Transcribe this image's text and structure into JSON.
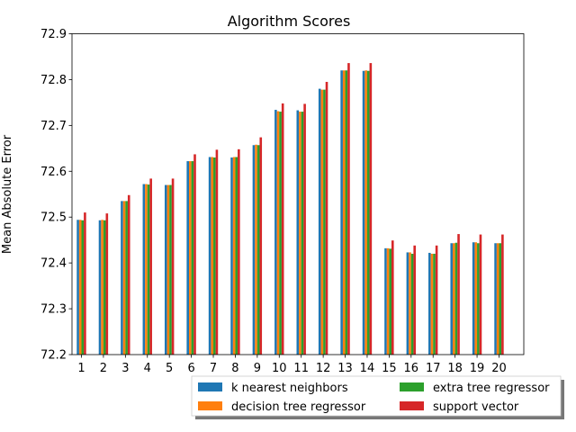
{
  "chart_data": {
    "type": "bar",
    "title": "Algorithm Scores",
    "xlabel": "",
    "ylabel": "Mean Absolute Error",
    "ylim": [
      72.2,
      72.9
    ],
    "yticks": [
      "72.2",
      "72.3",
      "72.4",
      "72.5",
      "72.6",
      "72.7",
      "72.8",
      "72.9"
    ],
    "categories": [
      "1",
      "2",
      "3",
      "4",
      "5",
      "6",
      "7",
      "8",
      "9",
      "10",
      "11",
      "12",
      "13",
      "14",
      "15",
      "16",
      "17",
      "18",
      "19",
      "20"
    ],
    "grid": false,
    "legend_position": "bottom-right, outside",
    "series": [
      {
        "name": "k nearest neighbors",
        "color": "#1f77b4",
        "values": [
          72.494,
          72.493,
          72.535,
          72.572,
          72.57,
          72.622,
          72.631,
          72.63,
          72.657,
          72.734,
          72.733,
          72.78,
          72.82,
          72.819,
          72.432,
          72.423,
          72.422,
          72.443,
          72.445,
          72.443
        ]
      },
      {
        "name": "decision tree regressor",
        "color": "#ff7f0e",
        "values": [
          72.494,
          72.494,
          72.535,
          72.572,
          72.57,
          72.622,
          72.631,
          72.631,
          72.658,
          72.731,
          72.73,
          72.778,
          72.82,
          72.82,
          72.432,
          72.423,
          72.42,
          72.443,
          72.445,
          72.443
        ]
      },
      {
        "name": "extra tree regressor",
        "color": "#2ca02c",
        "values": [
          72.493,
          72.493,
          72.535,
          72.571,
          72.57,
          72.622,
          72.63,
          72.631,
          72.657,
          72.73,
          72.73,
          72.778,
          72.82,
          72.819,
          72.431,
          72.42,
          72.42,
          72.444,
          72.443,
          72.443
        ]
      },
      {
        "name": "support vector",
        "color": "#d62728",
        "values": [
          72.51,
          72.508,
          72.548,
          72.584,
          72.584,
          72.637,
          72.647,
          72.648,
          72.674,
          72.748,
          72.747,
          72.795,
          72.836,
          72.836,
          72.449,
          72.438,
          72.438,
          72.463,
          72.462,
          72.462
        ]
      }
    ]
  }
}
